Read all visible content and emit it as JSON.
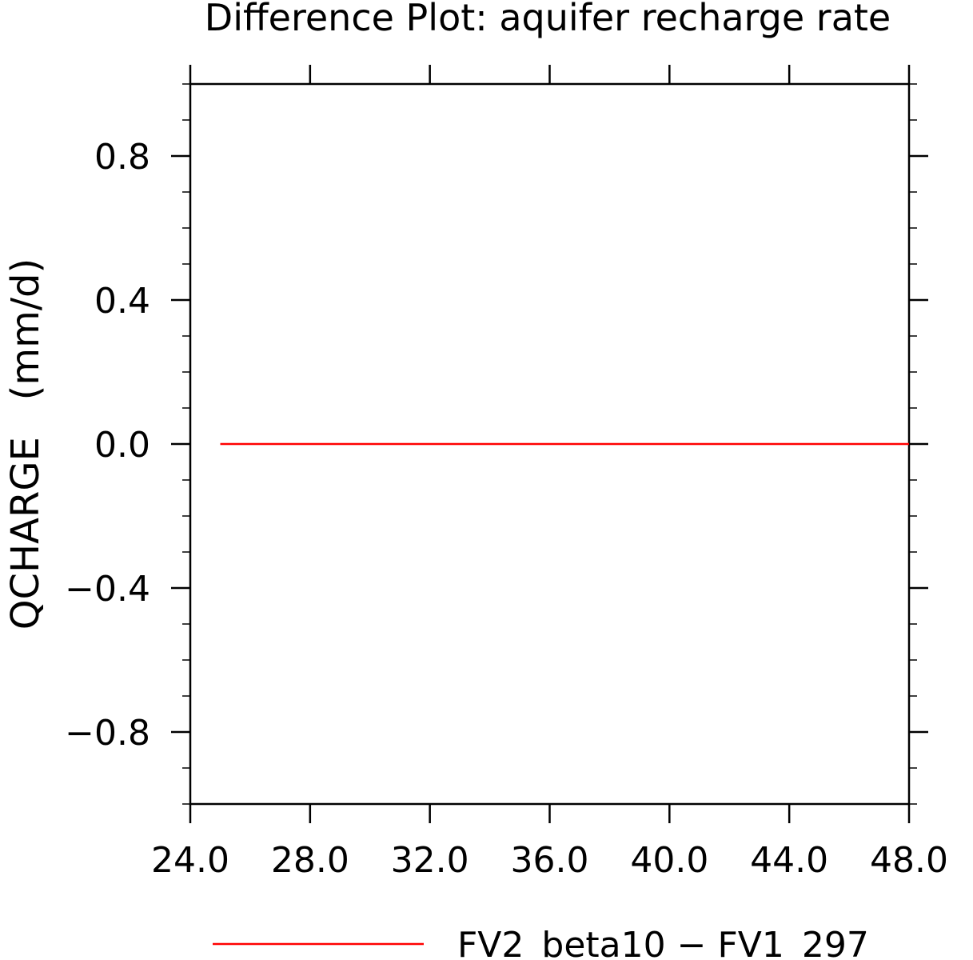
{
  "chart_data": {
    "type": "line",
    "title": "Difference Plot: aquifer recharge rate",
    "xlabel": "",
    "ylabel": "QCHARGE   (mm/d)",
    "xlim": [
      24,
      48
    ],
    "ylim": [
      -1,
      1
    ],
    "x_ticks": [
      24,
      28,
      32,
      36,
      40,
      44,
      48
    ],
    "x_tick_labels": [
      "24.0",
      "28.0",
      "32.0",
      "36.0",
      "40.0",
      "44.0",
      "48.0"
    ],
    "y_ticks": [
      -0.8,
      -0.4,
      0.0,
      0.4,
      0.8
    ],
    "y_tick_labels": [
      "−0.8",
      "−0.4",
      "0.0",
      "0.4",
      "0.8"
    ],
    "grid": false,
    "legend_position": "bottom-center",
    "series": [
      {
        "name": "FV2_beta10 − FV1_297",
        "color": "#ff0000",
        "x": [
          25,
          26,
          27,
          28,
          29,
          30,
          31,
          32,
          33,
          34,
          35,
          36,
          37,
          38,
          39,
          40,
          41,
          42,
          43,
          44,
          45,
          46,
          47,
          48
        ],
        "y": [
          0,
          0,
          0,
          0,
          0,
          0,
          0,
          0,
          0,
          0,
          0,
          0,
          0,
          0,
          0,
          0,
          0,
          0,
          0,
          0,
          0,
          0,
          0,
          0
        ]
      }
    ]
  }
}
